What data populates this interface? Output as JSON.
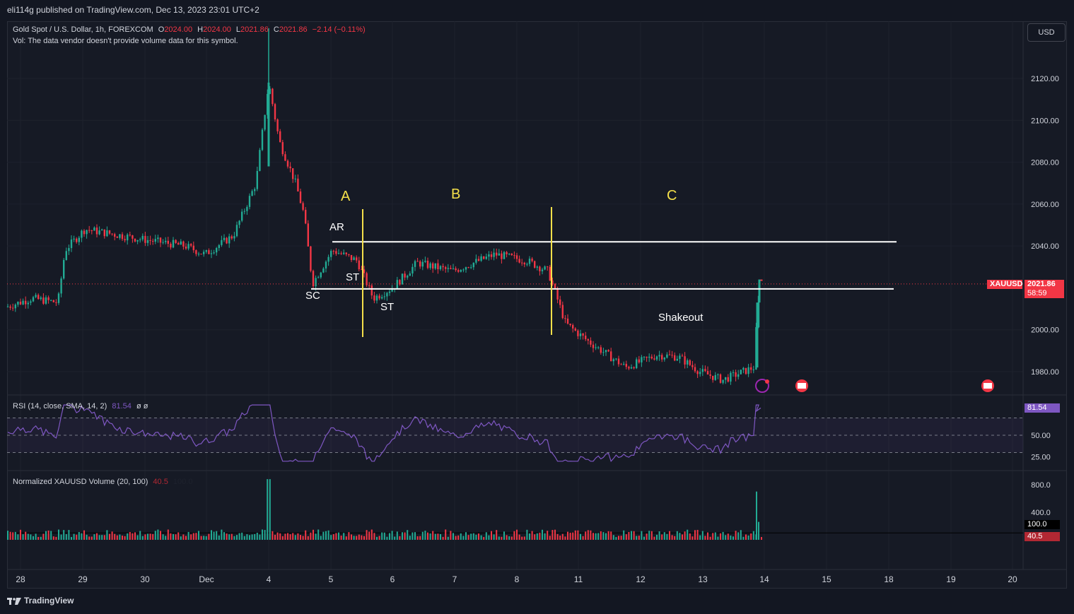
{
  "header": {
    "published": "eli114g published on TradingView.com, Dec 13, 2023 23:01 UTC+2"
  },
  "legend": {
    "symbol": "Gold Spot / U.S. Dollar, 1h, FOREXCOM",
    "o_label": "O",
    "o": "2024.00",
    "h_label": "H",
    "h": "2024.00",
    "l_label": "L",
    "l": "2021.86",
    "c_label": "C",
    "c": "2021.86",
    "change": "−2.14 (−0.11%)",
    "vol_note": "Vol: The data vendor doesn't provide volume data for this symbol."
  },
  "currency_button": "USD",
  "price_tags": {
    "symbol": "XAUUSD",
    "last": "2021.86",
    "countdown": "58:59"
  },
  "rsi_legend": {
    "label": "RSI (14, close, SMA, 14, 2)",
    "value": "81.54",
    "extra": "ø  ø",
    "tag": "81.54"
  },
  "vol_legend": {
    "label": "Normalized XAUUSD Volume (20, 100)",
    "v1": "40.5",
    "v2": "100.0",
    "tag_white": "100.0",
    "tag_red": "40.5"
  },
  "annotations": {
    "A": "A",
    "B": "B",
    "C": "C",
    "AR": "AR",
    "SC": "SC",
    "ST1": "ST",
    "ST2": "ST",
    "shakeout": "Shakeout"
  },
  "footer": {
    "brand": "TradingView"
  },
  "colors": {
    "up": "#22ab94",
    "down": "#f23645",
    "bg": "#161a25",
    "zone_line": "#ffffff",
    "phase_line": "#f5e04a",
    "rsi": "#7e57c2"
  },
  "chart_data": [
    {
      "type": "candlestick",
      "title": "Gold Spot / U.S. Dollar, 1h, FOREXCOM",
      "x_ticks": [
        "28",
        "29",
        "30",
        "Dec",
        "4",
        "5",
        "6",
        "7",
        "8",
        "11",
        "12",
        "13",
        "14",
        "15",
        "18",
        "19",
        "20"
      ],
      "y_ticks": [
        "2120.00",
        "2100.00",
        "2080.00",
        "2060.00",
        "2040.00",
        "2000.00",
        "1980.00"
      ],
      "ylim": [
        1970,
        2145
      ],
      "last_price": 2021.86,
      "ohlc_last": {
        "open": 2024.0,
        "high": 2024.0,
        "low": 2021.86,
        "close": 2021.86
      },
      "path_keypoints": [
        {
          "x": "28",
          "y": 2011
        },
        {
          "x": "28.5",
          "y": 2015
        },
        {
          "x": "29 (pre)",
          "y": 2013
        },
        {
          "x": "29",
          "y": 2038
        },
        {
          "x": "29.2",
          "y": 2048
        },
        {
          "x": "30",
          "y": 2043
        },
        {
          "x": "Dec",
          "y": 2040
        },
        {
          "x": "Dec+",
          "y": 2036
        },
        {
          "x": "Dec++",
          "y": 2045
        },
        {
          "x": "4 (pre)",
          "y": 2070
        },
        {
          "x": "4",
          "y": 2118
        },
        {
          "x": "4+",
          "y": 2090
        },
        {
          "x": "4++",
          "y": 2070
        },
        {
          "x": "4.6",
          "y": 2055
        },
        {
          "x": "4.8",
          "y": 2022
        },
        {
          "x": "5",
          "y": 2038
        },
        {
          "x": "5.5",
          "y": 2033
        },
        {
          "x": "5.7",
          "y": 2015
        },
        {
          "x": "6",
          "y": 2020
        },
        {
          "x": "6.4",
          "y": 2032
        },
        {
          "x": "7",
          "y": 2028
        },
        {
          "x": "7.5",
          "y": 2036
        },
        {
          "x": "8",
          "y": 2033
        },
        {
          "x": "8.5",
          "y": 2028
        },
        {
          "x": "11",
          "y": 2003
        },
        {
          "x": "11.5",
          "y": 1995
        },
        {
          "x": "12",
          "y": 1982
        },
        {
          "x": "12.5",
          "y": 1988
        },
        {
          "x": "12.7",
          "y": 1987
        },
        {
          "x": "13",
          "y": 1980
        },
        {
          "x": "13.4",
          "y": 1976
        },
        {
          "x": "13.8",
          "y": 1982
        },
        {
          "x": "13.9",
          "y": 2013
        },
        {
          "x": "14",
          "y": 2021.86
        }
      ],
      "levels": {
        "resistance": 2042,
        "support": 2019.5
      }
    },
    {
      "type": "line",
      "title": "RSI (14, close, SMA, 14, 2)",
      "y_ticks": [
        "50.00",
        "25.00"
      ],
      "bands": [
        70,
        50,
        30
      ],
      "ylim": [
        15,
        90
      ],
      "last": 81.54
    },
    {
      "type": "bar",
      "title": "Normalized XAUUSD Volume (20, 100)",
      "y_ticks": [
        "800.0",
        "400.0"
      ],
      "ylim": [
        0,
        880
      ],
      "last": 40.5,
      "reference": 100.0
    }
  ]
}
